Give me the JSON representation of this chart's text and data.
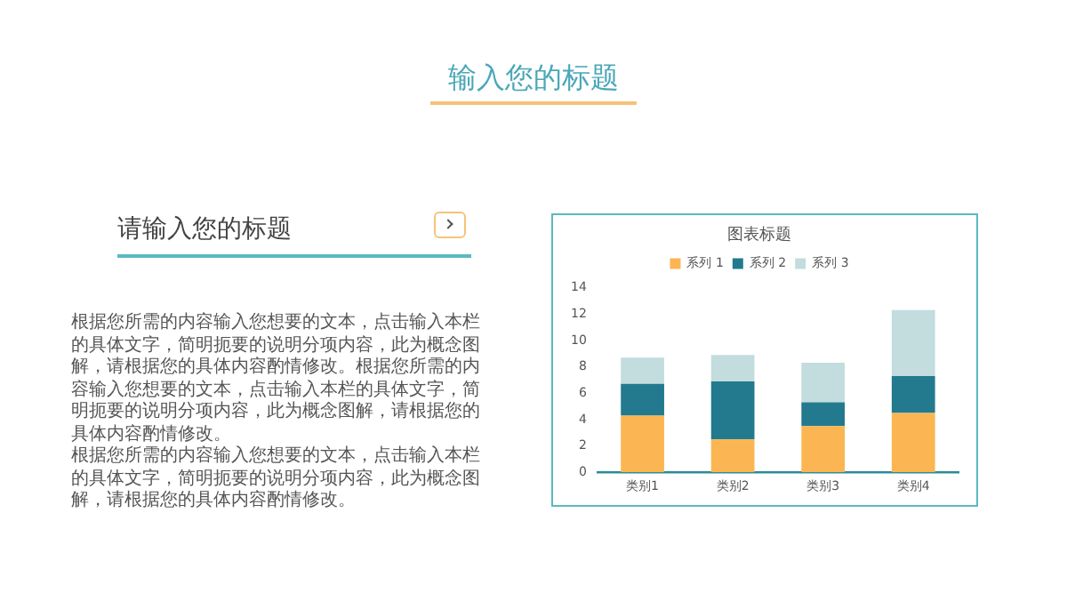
{
  "chart_data": {
    "type": "bar",
    "title": "图表标题",
    "stacked": true,
    "categories": [
      "类别1",
      "类别2",
      "类别3",
      "类别4"
    ],
    "series": [
      {
        "name": "系列 1",
        "color": "#fbb552",
        "values": [
          4.3,
          2.5,
          3.5,
          4.5
        ]
      },
      {
        "name": "系列 2",
        "color": "#237a8e",
        "values": [
          2.4,
          4.4,
          1.8,
          2.8
        ]
      },
      {
        "name": "系列 3",
        "color": "#c3dcdd",
        "values": [
          2.0,
          2.0,
          3.0,
          5.0
        ]
      }
    ],
    "ylim": [
      0,
      14
    ],
    "yticks": [
      0,
      2,
      4,
      6,
      8,
      10,
      12,
      14
    ],
    "grid": false,
    "legend": "top",
    "annotations": [
      "输入您的标题",
      "请输入您的标题",
      "根据您所需的内容输入您想要的文本，点击输入本栏的具体文字，简明扼要的说明分项内容，此为概念图解，请根据您的具体内容酌情修改。根据您所需的内容输入您想要的文本，点击输入本栏的具体文字，简明扼要的说明分项内容，此为概念图解，请根据您的具体内容酌情修改。",
      "根据您所需的内容输入您想要的文本，点击输入本栏的具体文字，简明扼要的说明分项内容，此为概念图解，请根据您的具体内容酌情修改。"
    ]
  }
}
